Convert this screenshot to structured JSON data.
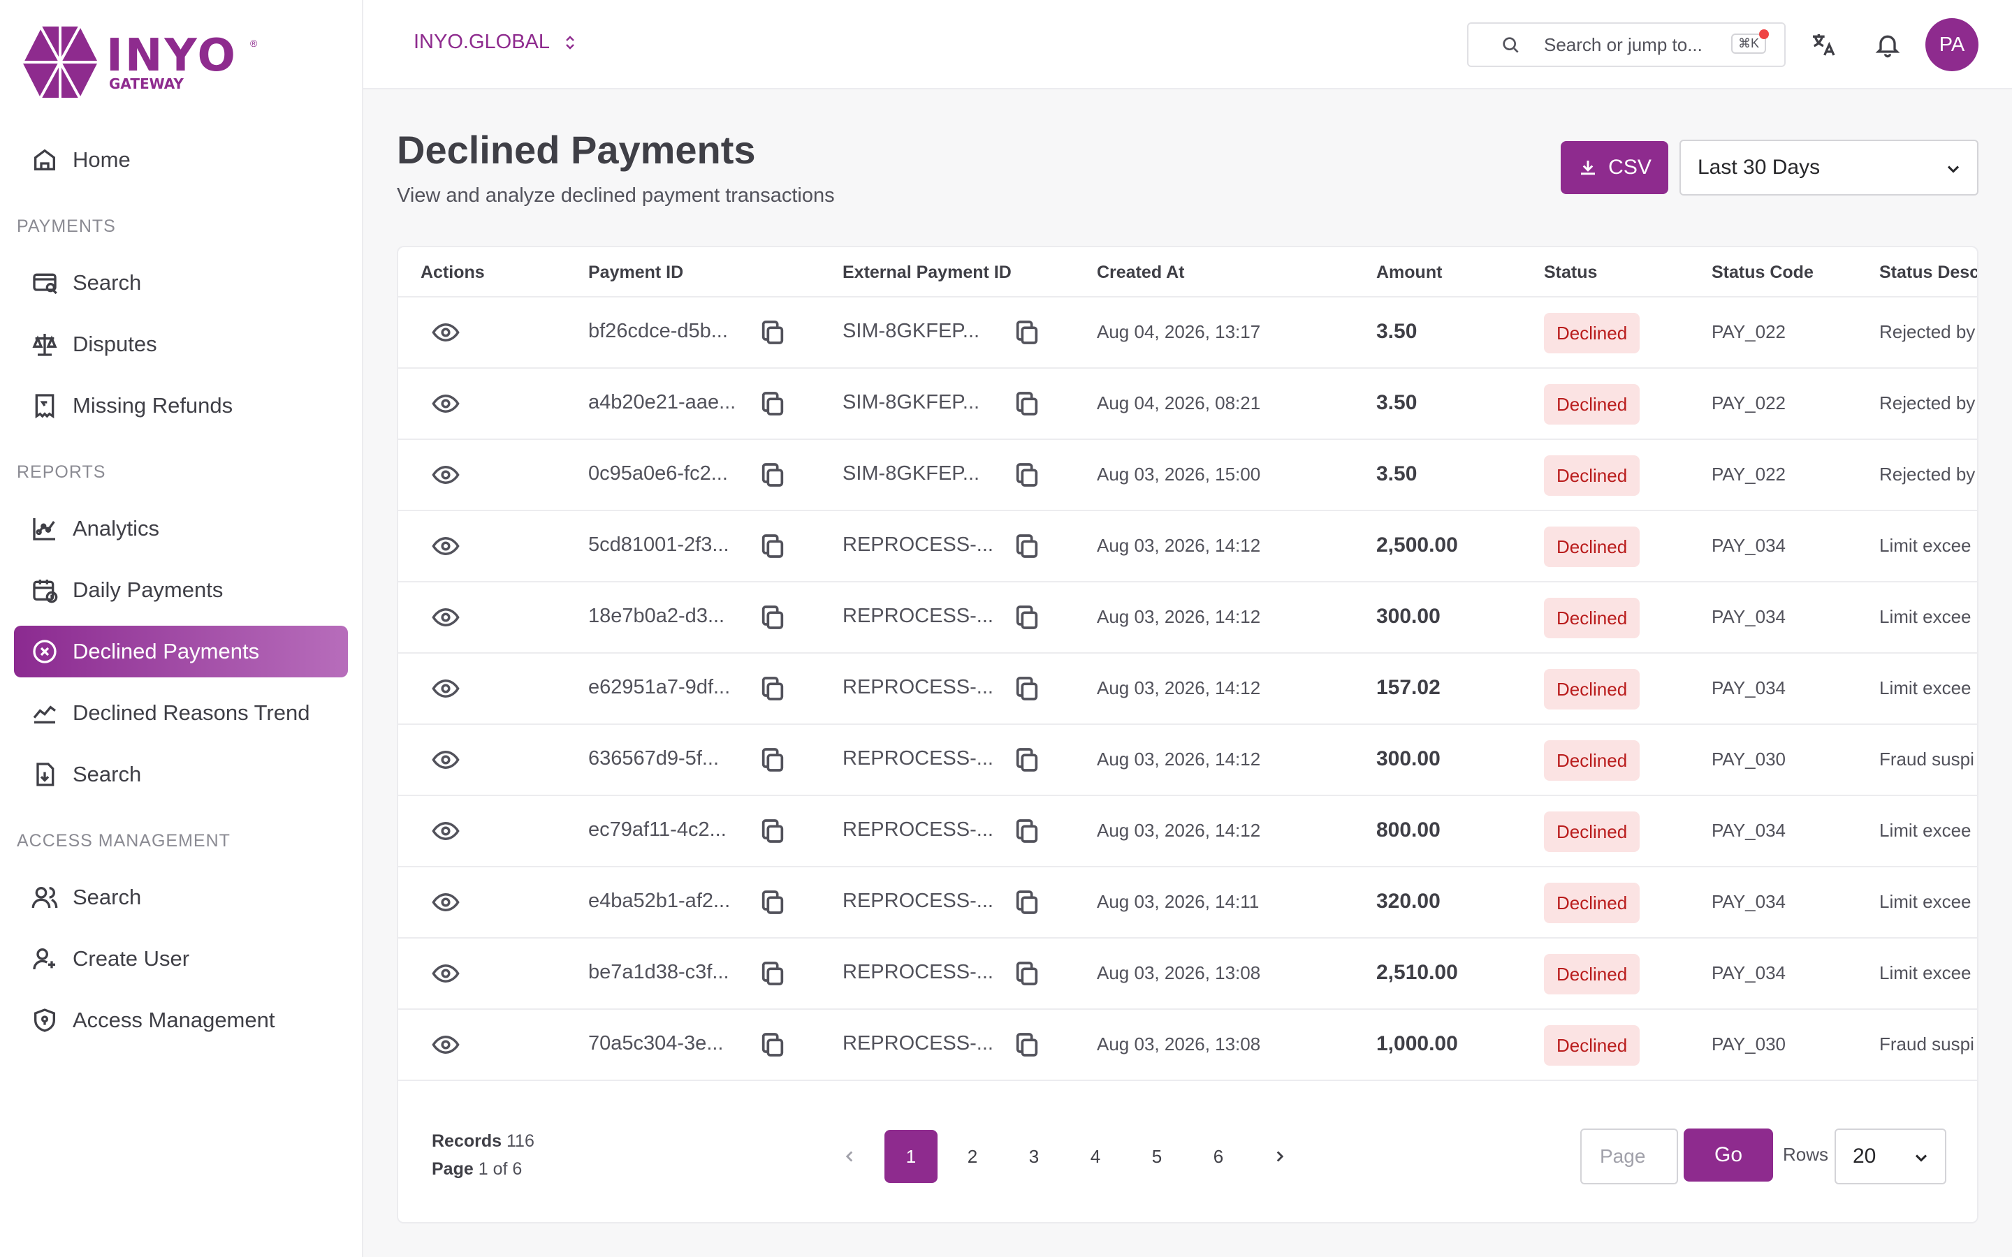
{
  "brand": {
    "name": "INYO",
    "sub": "GATEWAY",
    "mark": "®"
  },
  "sidebar": {
    "home": "Home",
    "sections": {
      "payments": "PAYMENTS",
      "reports": "REPORTS",
      "access": "ACCESS MANAGEMENT"
    },
    "payments": [
      "Search",
      "Disputes",
      "Missing Refunds"
    ],
    "reports": [
      "Analytics",
      "Daily Payments",
      "Declined Payments",
      "Declined Reasons Trend",
      "Search"
    ],
    "access": [
      "Search",
      "Create User",
      "Access Management"
    ]
  },
  "topbar": {
    "org": "INYO.GLOBAL",
    "search_placeholder": "Search or jump to...",
    "shortcut": "⌘K",
    "avatar": "PA"
  },
  "page": {
    "title": "Declined Payments",
    "subtitle": "View and analyze declined payment transactions",
    "csv_label": "CSV",
    "range": "Last 30 Days"
  },
  "table": {
    "columns": [
      "Actions",
      "Payment ID",
      "External Payment ID",
      "Created At",
      "Amount",
      "Status",
      "Status Code",
      "Status Desc"
    ],
    "rows": [
      {
        "id": "bf26cdce-d5b...",
        "ext": "SIM-8GKFEP...",
        "date": "Aug 04, 2026, 13:17",
        "amount": "3.50",
        "status": "Declined",
        "code": "PAY_022",
        "desc": "Rejected by"
      },
      {
        "id": "a4b20e21-aae...",
        "ext": "SIM-8GKFEP...",
        "date": "Aug 04, 2026, 08:21",
        "amount": "3.50",
        "status": "Declined",
        "code": "PAY_022",
        "desc": "Rejected by"
      },
      {
        "id": "0c95a0e6-fc2...",
        "ext": "SIM-8GKFEP...",
        "date": "Aug 03, 2026, 15:00",
        "amount": "3.50",
        "status": "Declined",
        "code": "PAY_022",
        "desc": "Rejected by"
      },
      {
        "id": "5cd81001-2f3...",
        "ext": "REPROCESS-...",
        "date": "Aug 03, 2026, 14:12",
        "amount": "2,500.00",
        "status": "Declined",
        "code": "PAY_034",
        "desc": "Limit excee"
      },
      {
        "id": "18e7b0a2-d3...",
        "ext": "REPROCESS-...",
        "date": "Aug 03, 2026, 14:12",
        "amount": "300.00",
        "status": "Declined",
        "code": "PAY_034",
        "desc": "Limit excee"
      },
      {
        "id": "e62951a7-9df...",
        "ext": "REPROCESS-...",
        "date": "Aug 03, 2026, 14:12",
        "amount": "157.02",
        "status": "Declined",
        "code": "PAY_034",
        "desc": "Limit excee"
      },
      {
        "id": "636567d9-5f...",
        "ext": "REPROCESS-...",
        "date": "Aug 03, 2026, 14:12",
        "amount": "300.00",
        "status": "Declined",
        "code": "PAY_030",
        "desc": "Fraud suspi"
      },
      {
        "id": "ec79af11-4c2...",
        "ext": "REPROCESS-...",
        "date": "Aug 03, 2026, 14:12",
        "amount": "800.00",
        "status": "Declined",
        "code": "PAY_034",
        "desc": "Limit excee"
      },
      {
        "id": "e4ba52b1-af2...",
        "ext": "REPROCESS-...",
        "date": "Aug 03, 2026, 14:11",
        "amount": "320.00",
        "status": "Declined",
        "code": "PAY_034",
        "desc": "Limit excee"
      },
      {
        "id": "be7a1d38-c3f...",
        "ext": "REPROCESS-...",
        "date": "Aug 03, 2026, 13:08",
        "amount": "2,510.00",
        "status": "Declined",
        "code": "PAY_034",
        "desc": "Limit excee"
      },
      {
        "id": "70a5c304-3e...",
        "ext": "REPROCESS-...",
        "date": "Aug 03, 2026, 13:08",
        "amount": "1,000.00",
        "status": "Declined",
        "code": "PAY_030",
        "desc": "Fraud suspi"
      }
    ]
  },
  "footer": {
    "records_label": "Records",
    "records": "116",
    "page_label": "Page",
    "page_of": "1 of 6",
    "pages": [
      "1",
      "2",
      "3",
      "4",
      "5",
      "6"
    ],
    "page_placeholder": "Page",
    "go": "Go",
    "rows_label": "Rows",
    "rows_value": "20"
  },
  "colors": {
    "accent": "#8e2b8e",
    "badge_bg": "#fbe3e3",
    "badge_text": "#b91c1c"
  }
}
